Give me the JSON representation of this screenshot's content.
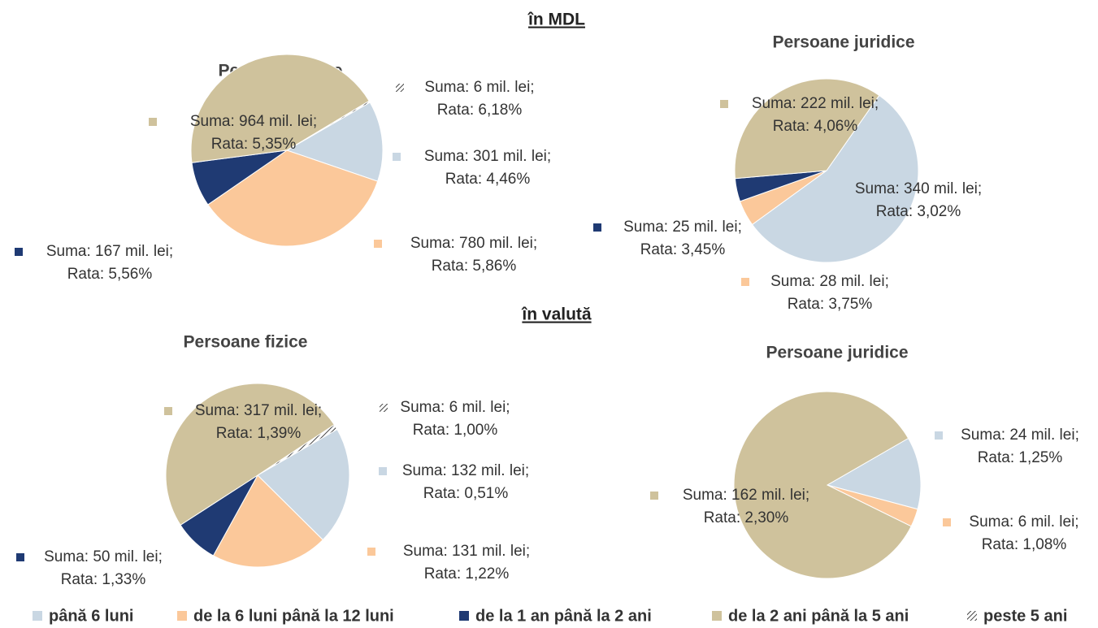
{
  "sections": [
    "în MDL",
    "în valută"
  ],
  "legend": [
    {
      "name": "până 6 luni",
      "color": "#c9d7e3"
    },
    {
      "name": "de la 6 luni până la 12 luni",
      "color": "#fbc89a"
    },
    {
      "name": "de la 1 an până la 2 ani",
      "color": "#1f3a73"
    },
    {
      "name": "de la 2 ani până la 5 ani",
      "color": "#cfc29c"
    },
    {
      "name": "peste 5 ani",
      "color": "hatch"
    }
  ],
  "chart_data": [
    {
      "type": "pie",
      "title": "Persoane fizice",
      "values": [
        301,
        780,
        167,
        964,
        6
      ],
      "value_labels": [
        "Suma: 301 mil. lei;",
        "Suma: 780 mil. lei;",
        "Suma: 167 mil. lei;",
        "Suma: 964 mil. lei;",
        "Suma: 6 mil. lei;"
      ],
      "rate_labels": [
        "Rata: 4,46%",
        "Rata: 5,86%",
        "Rata: 5,56%",
        "Rata: 5,35%",
        "Rata: 6,18%"
      ]
    },
    {
      "type": "pie",
      "title": "Persoane juridice",
      "values": [
        340,
        28,
        25,
        222,
        null
      ],
      "value_labels": [
        "Suma: 340 mil. lei;",
        "Suma: 28 mil. lei;",
        "Suma: 25 mil. lei;",
        "Suma: 222 mil. lei;",
        null
      ],
      "rate_labels": [
        "Rata: 3,02%",
        "Rata: 3,75%",
        "Rata: 3,45%",
        "Rata: 4,06%",
        null
      ]
    },
    {
      "type": "pie",
      "title": "Persoane fizice",
      "values": [
        132,
        131,
        50,
        317,
        6
      ],
      "value_labels": [
        "Suma: 132 mil. lei;",
        "Suma: 131 mil. lei;",
        "Suma: 50 mil. lei;",
        "Suma: 317 mil. lei;",
        "Suma: 6 mil. lei;"
      ],
      "rate_labels": [
        "Rata: 0,51%",
        "Rata: 1,22%",
        "Rata: 1,33%",
        "Rata: 1,39%",
        "Rata: 1,00%"
      ]
    },
    {
      "type": "pie",
      "title": "Persoane juridice",
      "values": [
        24,
        6,
        null,
        162,
        null
      ],
      "value_labels": [
        "Suma: 24 mil. lei;",
        "Suma: 6 mil. lei;",
        null,
        "Suma: 162 mil. lei;",
        null
      ],
      "rate_labels": [
        "Rata: 1,25%",
        "Rata: 1,08%",
        null,
        "Rata: 2,30%",
        null
      ]
    }
  ]
}
